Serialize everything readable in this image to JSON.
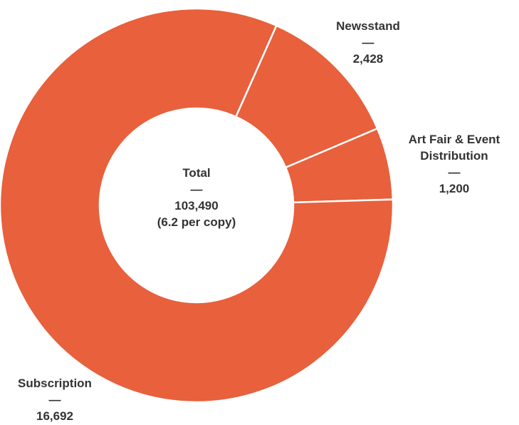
{
  "chart_data": {
    "type": "donut",
    "categories": [
      "Newsstand",
      "Art Fair & Event Distribution",
      "Subscription"
    ],
    "values": [
      2428,
      1200,
      16692
    ],
    "value_labels": [
      "2,428",
      "1,200",
      "16,692"
    ],
    "color": "#e8603c",
    "center_title": "Total",
    "center_value": "103,490",
    "center_note": "(6.2 per copy)"
  }
}
